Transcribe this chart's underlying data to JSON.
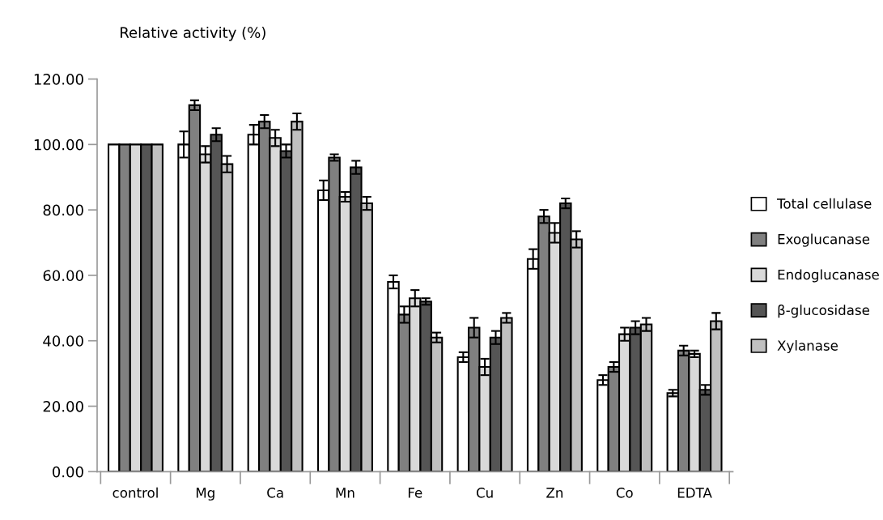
{
  "chart_data": {
    "type": "bar",
    "ylabel": "Relative activity (%)",
    "categories": [
      "control",
      "Mg",
      "Ca",
      "Mn",
      "Fe",
      "Cu",
      "Zn",
      "Co",
      "EDTA"
    ],
    "series": [
      {
        "name": "Total cellulase",
        "color": "#ffffff",
        "values": [
          100,
          100,
          103,
          86,
          58,
          35,
          65,
          28,
          24
        ],
        "errors": [
          null,
          4,
          3,
          3,
          2,
          1.5,
          3,
          1.5,
          1
        ]
      },
      {
        "name": "Exoglucanase",
        "color": "#808080",
        "values": [
          100,
          112,
          107,
          96,
          48,
          44,
          78,
          32,
          37
        ],
        "errors": [
          null,
          1.5,
          2,
          1,
          2.5,
          3,
          2,
          1.5,
          1.5
        ]
      },
      {
        "name": "Endoglucanase",
        "color": "#d9d9d9",
        "values": [
          100,
          97,
          102,
          84,
          53,
          32,
          73,
          42,
          36
        ],
        "errors": [
          null,
          2.5,
          2.5,
          1.5,
          2.5,
          2.5,
          3,
          2,
          1
        ]
      },
      {
        "name": "β-glucosidase",
        "color": "#555555",
        "values": [
          100,
          103,
          98,
          93,
          52,
          41,
          82,
          44,
          25
        ],
        "errors": [
          null,
          2,
          2,
          2,
          1,
          2,
          1.5,
          2,
          1.5
        ]
      },
      {
        "name": "Xylanase",
        "color": "#c0c0c0",
        "values": [
          100,
          94,
          107,
          82,
          41,
          47,
          71,
          45,
          46
        ],
        "errors": [
          null,
          2.5,
          2.5,
          2,
          1.5,
          1.5,
          2.5,
          2,
          2.5
        ]
      }
    ],
    "ylim": [
      0,
      120
    ],
    "yticks": [
      {
        "value": 0,
        "label": "0.00"
      },
      {
        "value": 20,
        "label": "20.00"
      },
      {
        "value": 40,
        "label": "40.00"
      },
      {
        "value": 60,
        "label": "60.00"
      },
      {
        "value": 80,
        "label": "80.00"
      },
      {
        "value": 100,
        "label": "100.00"
      },
      {
        "value": 120,
        "label": "120.00"
      }
    ],
    "grid": false,
    "legend": "right"
  }
}
